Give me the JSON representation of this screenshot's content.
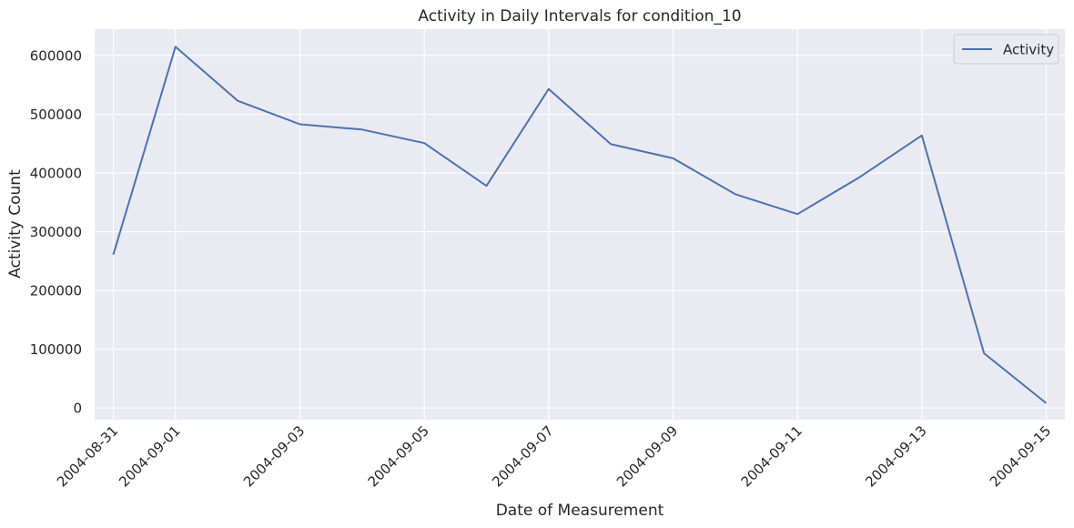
{
  "chart_data": {
    "type": "line",
    "title": "Activity in Daily Intervals for condition_10",
    "xlabel": "Date of Measurement",
    "ylabel": "Activity Count",
    "x": [
      "2004-08-31",
      "2004-09-01",
      "2004-09-02",
      "2004-09-03",
      "2004-09-04",
      "2004-09-05",
      "2004-09-06",
      "2004-09-07",
      "2004-09-08",
      "2004-09-09",
      "2004-09-10",
      "2004-09-11",
      "2004-09-12",
      "2004-09-13",
      "2004-09-14",
      "2004-09-15"
    ],
    "series": [
      {
        "name": "Activity",
        "color": "#4c72b0",
        "values": [
          261000,
          615000,
          523000,
          483000,
          474000,
          451000,
          378000,
          543000,
          449000,
          425000,
          364000,
          330000,
          393000,
          464000,
          93000,
          8000
        ]
      }
    ],
    "x_ticks": [
      "2004-08-31",
      "2004-09-01",
      "2004-09-03",
      "2004-09-05",
      "2004-09-07",
      "2004-09-09",
      "2004-09-11",
      "2004-09-13",
      "2004-09-15"
    ],
    "y_ticks": [
      0,
      100000,
      200000,
      300000,
      400000,
      500000,
      600000
    ],
    "y_tick_labels": [
      "0",
      "100000",
      "200000",
      "300000",
      "400000",
      "500000",
      "600000"
    ],
    "ylim": [
      -20000,
      645000
    ],
    "xlim": [
      "2004-08-30T16:48",
      "2004-09-15T07:12"
    ],
    "grid": true,
    "legend_position": "upper right",
    "background_color": "#eaeaf2",
    "grid_color": "#ffffff"
  }
}
